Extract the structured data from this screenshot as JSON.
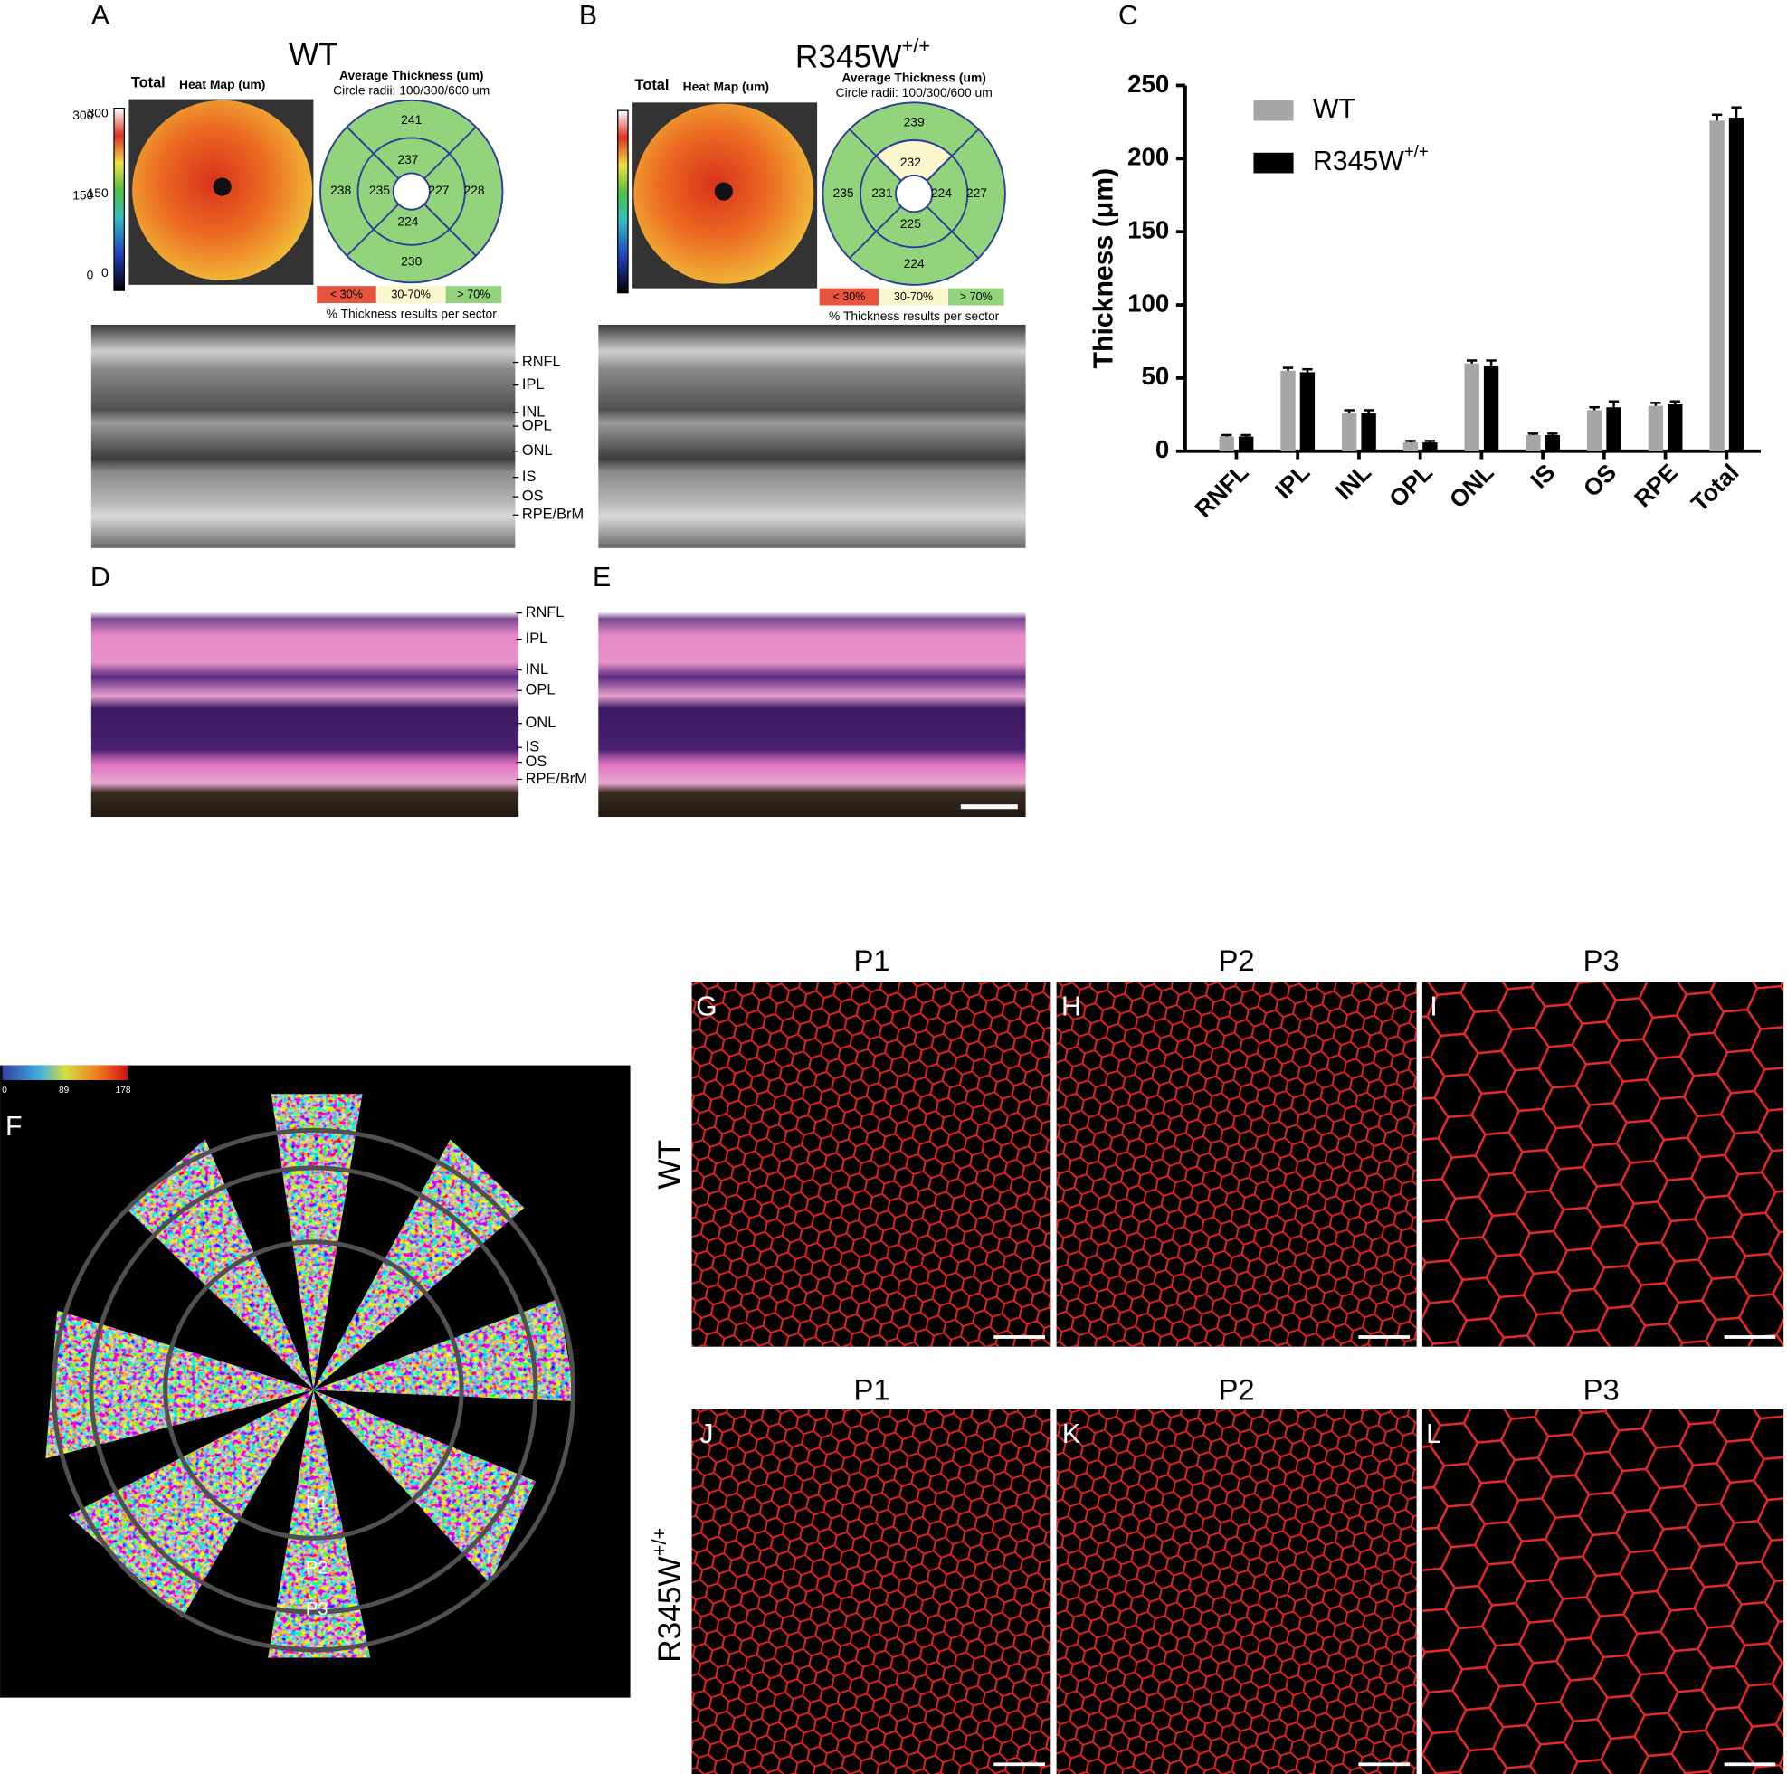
{
  "panel_letters": [
    "A",
    "B",
    "C",
    "D",
    "E",
    "F",
    "G",
    "H",
    "I",
    "J",
    "K",
    "L"
  ],
  "heatmap": {
    "total_label": "Total",
    "title": "Heat Map (um)",
    "scale_ticks": [
      300,
      150,
      0
    ]
  },
  "sector_map": {
    "title": "Average Thickness (um)",
    "radii": "Circle radii: 100/300/600 um",
    "legend": [
      "< 30%",
      "30-70%",
      "> 70%"
    ],
    "caption": "% Thickness results per sector"
  },
  "panel_a": {
    "title": "WT",
    "sectors": {
      "outer": [
        241,
        228,
        230,
        238
      ],
      "inner": [
        237,
        227,
        224,
        235
      ]
    }
  },
  "panel_b": {
    "title": "R345W",
    "title_superscript": "+/+",
    "sectors": {
      "outer": [
        239,
        227,
        224,
        235
      ],
      "inner": [
        232,
        224,
        225,
        231
      ]
    }
  },
  "layers": [
    "RNFL",
    "IPL",
    "INL",
    "OPL",
    "ONL",
    "IS",
    "OS",
    "RPE/BrM"
  ],
  "chart_data": {
    "type": "bar",
    "ylabel": "Thickness (μm)",
    "categories": [
      "RNFL",
      "IPL",
      "INL",
      "OPL",
      "ONL",
      "IS",
      "OS",
      "RPE",
      "Total"
    ],
    "series": [
      {
        "name": "WT",
        "color": "#a6a6a6",
        "values": [
          10,
          55,
          26,
          6,
          60,
          11,
          28,
          31,
          226
        ],
        "errors": [
          1,
          2,
          2,
          1,
          2,
          1,
          2,
          2,
          4
        ]
      },
      {
        "name": "R345W",
        "name_superscript": "+/+",
        "color": "#000000",
        "values": [
          10,
          54,
          26,
          6,
          58,
          11,
          30,
          32,
          228
        ],
        "errors": [
          1,
          2,
          2,
          1,
          4,
          1,
          4,
          2,
          7
        ]
      }
    ],
    "ylim": [
      0,
      250
    ],
    "yticks": [
      0,
      50,
      100,
      150,
      200,
      250
    ]
  },
  "flatmount": {
    "colorbar_ticks": [
      0,
      89,
      178
    ],
    "regions": [
      "P1",
      "P2",
      "P3"
    ]
  },
  "microscopy": {
    "columns": [
      "P1",
      "P2",
      "P3"
    ],
    "rows": [
      {
        "label": "WT"
      },
      {
        "label": "R345W",
        "superscript": "+/+"
      }
    ]
  }
}
